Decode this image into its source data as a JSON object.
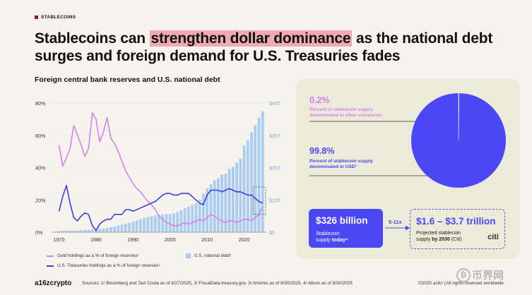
{
  "tag": "STABLECOINS",
  "headline": {
    "pre": "Stablecoins can ",
    "highlight": "strengthen dollar dominance",
    "post": " as the national debt surges and foreign demand for U.S. Treasuries fades"
  },
  "chart_data": {
    "type": "bar+line",
    "title": "Foreign central bank reserves and U.S. national debt",
    "left_axis": {
      "ylim": [
        0,
        80
      ],
      "ticks": [
        0,
        20,
        40,
        60,
        80
      ],
      "tick_labels": [
        "0%",
        "20%",
        "40%",
        "60%",
        "80%"
      ]
    },
    "right_axis": {
      "ylim": [
        0,
        40
      ],
      "ticks": [
        0,
        10,
        20,
        30,
        40
      ],
      "tick_labels": [
        "$0",
        "$10T",
        "$20T",
        "$30T",
        "$40T"
      ]
    },
    "x_axis": {
      "xlim": [
        1968,
        2026
      ],
      "ticks": [
        1970,
        1980,
        1990,
        2000,
        2010,
        2020
      ],
      "tick_labels": [
        "1970",
        "1980",
        "1990",
        "2000",
        "2010",
        "2020"
      ]
    },
    "bars": {
      "name": "U.S. national debt",
      "color": "#a9cdf0",
      "x": [
        1970,
        1971,
        1972,
        1973,
        1974,
        1975,
        1976,
        1977,
        1978,
        1979,
        1980,
        1981,
        1982,
        1983,
        1984,
        1985,
        1986,
        1987,
        1988,
        1989,
        1990,
        1991,
        1992,
        1993,
        1994,
        1995,
        1996,
        1997,
        1998,
        1999,
        2000,
        2001,
        2002,
        2003,
        2004,
        2005,
        2006,
        2007,
        2008,
        2009,
        2010,
        2011,
        2012,
        2013,
        2014,
        2015,
        2016,
        2017,
        2018,
        2019,
        2020,
        2021,
        2022,
        2023,
        2024,
        2025
      ],
      "values": [
        0.37,
        0.41,
        0.44,
        0.47,
        0.48,
        0.54,
        0.63,
        0.71,
        0.78,
        0.83,
        0.91,
        1.0,
        1.14,
        1.38,
        1.57,
        1.82,
        2.13,
        2.35,
        2.6,
        2.86,
        3.23,
        3.67,
        4.06,
        4.41,
        4.69,
        4.97,
        5.22,
        5.41,
        5.53,
        5.66,
        5.67,
        5.81,
        6.23,
        6.78,
        7.38,
        7.93,
        8.51,
        9.01,
        10.02,
        11.91,
        13.56,
        14.79,
        16.07,
        16.74,
        17.82,
        18.15,
        19.57,
        20.24,
        21.52,
        22.72,
        26.95,
        28.43,
        30.93,
        33.17,
        35.46,
        37.5
      ]
    },
    "series": [
      {
        "name": "Gold holdings as a % of foreign reserves",
        "color": "#d97ef0",
        "x": [
          1970,
          1971,
          1972,
          1973,
          1974,
          1975,
          1976,
          1977,
          1978,
          1979,
          1980,
          1981,
          1982,
          1983,
          1984,
          1985,
          1986,
          1987,
          1988,
          1989,
          1990,
          1991,
          1992,
          1993,
          1994,
          1995,
          1996,
          1997,
          1998,
          1999,
          2000,
          2001,
          2002,
          2003,
          2004,
          2005,
          2006,
          2007,
          2008,
          2009,
          2010,
          2011,
          2012,
          2013,
          2014,
          2015,
          2016,
          2017,
          2018,
          2019,
          2020,
          2021,
          2022,
          2023,
          2024,
          2025
        ],
        "values": [
          54,
          41,
          46,
          52,
          66,
          60,
          54,
          47,
          52,
          74,
          70,
          56,
          62,
          71,
          58,
          55,
          50,
          44,
          38,
          34,
          30,
          27,
          25,
          22,
          19,
          17,
          14,
          10,
          8,
          6,
          5,
          4,
          4,
          5,
          6,
          5,
          6,
          7,
          8,
          7,
          9,
          11,
          10,
          8,
          7,
          6,
          7,
          7,
          6,
          7,
          8,
          8,
          7,
          9,
          11,
          16
        ]
      },
      {
        "name": "U.S. Treasuries holdings as a % of foreign reserves",
        "color": "#3f3cdc",
        "x": [
          1970,
          1971,
          1972,
          1973,
          1974,
          1975,
          1976,
          1977,
          1978,
          1979,
          1980,
          1981,
          1982,
          1983,
          1984,
          1985,
          1986,
          1987,
          1988,
          1989,
          1990,
          1991,
          1992,
          1993,
          1994,
          1995,
          1996,
          1997,
          1998,
          1999,
          2000,
          2001,
          2002,
          2003,
          2004,
          2005,
          2006,
          2007,
          2008,
          2009,
          2010,
          2011,
          2012,
          2013,
          2014,
          2015,
          2016,
          2017,
          2018,
          2019,
          2020,
          2021,
          2022,
          2023,
          2024,
          2025
        ],
        "values": [
          13,
          22,
          29,
          18,
          9,
          7,
          10,
          12,
          11,
          4,
          1,
          5,
          7,
          8,
          8,
          11,
          11,
          11,
          14,
          14,
          13,
          14,
          15,
          16,
          17,
          18,
          19,
          21,
          23,
          24,
          24,
          23,
          23,
          24,
          24,
          24,
          22,
          20,
          18,
          17,
          23,
          26,
          26,
          26,
          25,
          26,
          27,
          26,
          25,
          25,
          24,
          23,
          23,
          21,
          19,
          18
        ]
      }
    ]
  },
  "legend": {
    "gold": "Gold holdings as a % of foreign reserves¹",
    "debt": "U.S. national debt²",
    "treasuries": "U.S. Treasuries holdings as a % of foreign reserves¹"
  },
  "pie": {
    "color": "#4a47f5",
    "other_pct": 0.2,
    "usd_pct": 99.8,
    "other_label": "0.2%",
    "other_desc_1": "Percent of stablecoin supply",
    "other_desc_2": "denominated in other currencies",
    "usd_label": "99.8%",
    "usd_desc_1": "Percent of stablecoin supply",
    "usd_desc_2": "denominated in USD³"
  },
  "supply": {
    "today_value": "$326 billion",
    "today_desc_1": "Stablecoin",
    "today_desc_2a": "supply ",
    "today_desc_2b": "today⁴",
    "multiplier": "5-11x",
    "projected_value": "$1.6 – $3.7 trillion",
    "projected_desc_1": "Projected stablecoin",
    "projected_desc_2a": "supply ",
    "projected_desc_2b": "by 2030",
    "projected_desc_2c": " (Citi)",
    "citi": "citi"
  },
  "footer": {
    "logo": "a16zcrypto",
    "sources": "Sources: 1/ Bloomberg and Tavi Costa as of 8/27/2025, 2/ FiscalData.treasury.gov, 3/ Artemis as of 9/30/2025, 4/ Allium as of 9/30/2025",
    "copyright": "©2025 a16z | All rights reserved worldwide"
  },
  "watermark": "币界网"
}
